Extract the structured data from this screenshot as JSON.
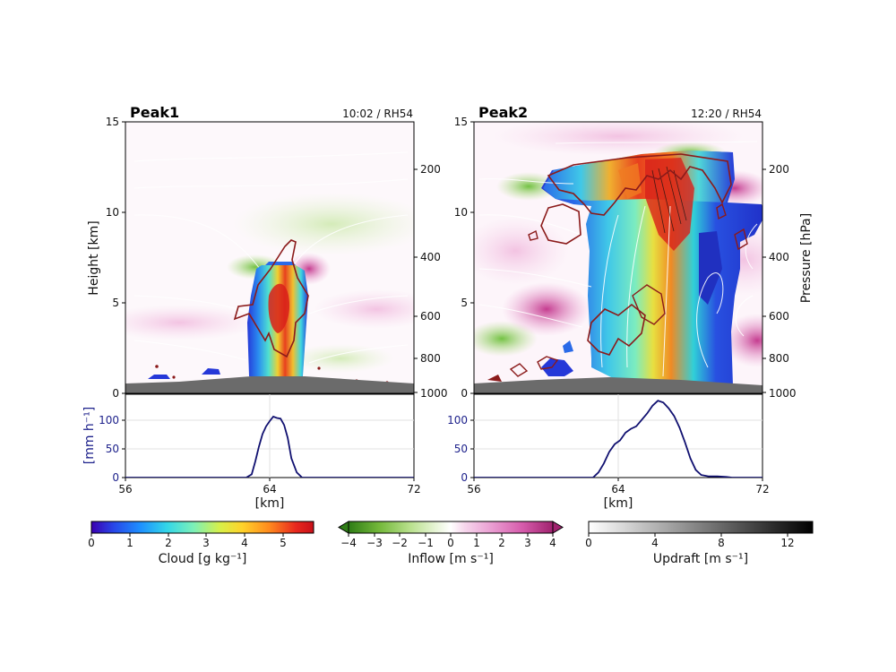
{
  "chart_data": [
    {
      "type": "heatmap",
      "title": "Peak1",
      "subtitle": "10:02 / RH54",
      "ylabel": "Height [km]",
      "ylim": [
        0,
        15
      ],
      "yticks": [
        "0",
        "5",
        "10",
        "15"
      ],
      "y2ticks": [
        "200",
        "400",
        "600",
        "800",
        "1000"
      ],
      "panel_xlim": [
        56,
        72
      ]
    },
    {
      "type": "heatmap",
      "title": "Peak2",
      "subtitle": "12:20 / RH54",
      "ylabel": "",
      "ylabel2": "Pressure [hPa]",
      "ylim": [
        0,
        15
      ],
      "yticks": [
        "0",
        "5",
        "10",
        "15"
      ],
      "y2ticks": [
        "200",
        "400",
        "600",
        "800",
        "1000"
      ],
      "panel_xlim": [
        56,
        72
      ]
    },
    {
      "type": "line",
      "panel": "Peak1",
      "xlabel": "[km]",
      "ylabel": "[mm h⁻¹]",
      "xlim": [
        56,
        72
      ],
      "ylim": [
        0,
        130
      ],
      "xticks": [
        "56",
        "64",
        "72"
      ],
      "yticks": [
        "0",
        "50",
        "100"
      ],
      "series": [
        {
          "x": [
            56,
            62.7,
            63.0,
            63.2,
            63.4,
            63.6,
            63.8,
            64.0,
            64.2,
            64.4,
            64.6,
            64.8,
            65.0,
            65.2,
            65.5,
            65.8,
            72
          ],
          "y": [
            0,
            0,
            5,
            25,
            48,
            68,
            80,
            88,
            95,
            93,
            92,
            82,
            62,
            30,
            8,
            0,
            0
          ]
        }
      ]
    },
    {
      "type": "line",
      "panel": "Peak2",
      "xlabel": "[km]",
      "ylabel": "",
      "xlim": [
        56,
        72
      ],
      "ylim": [
        0,
        130
      ],
      "xticks": [
        "56",
        "64",
        "72"
      ],
      "yticks": [
        "0",
        "50",
        "100"
      ],
      "series": [
        {
          "x": [
            56,
            62.6,
            62.9,
            63.2,
            63.5,
            63.8,
            64.1,
            64.4,
            64.7,
            65.0,
            65.3,
            65.6,
            65.9,
            66.2,
            66.5,
            66.8,
            67.1,
            67.4,
            67.7,
            68.0,
            68.3,
            68.6,
            69.0,
            69.5,
            70.0,
            70.3,
            72
          ],
          "y": [
            0,
            0,
            8,
            22,
            40,
            52,
            58,
            70,
            76,
            80,
            90,
            100,
            112,
            120,
            117,
            108,
            96,
            78,
            55,
            30,
            12,
            4,
            2,
            2,
            1,
            0,
            0
          ]
        }
      ]
    }
  ],
  "colorbars": [
    {
      "label": "Cloud [g kg⁻¹]",
      "ticks": [
        "0",
        "1",
        "2",
        "3",
        "4",
        "5"
      ],
      "range": [
        0,
        5.8
      ],
      "colors": [
        "#3b00b0",
        "#2846e8",
        "#1e90ff",
        "#33d6e8",
        "#7cf0b8",
        "#d8f048",
        "#ffd22a",
        "#ff8a1e",
        "#e8281e",
        "#c8101a"
      ]
    },
    {
      "label": "Inflow [m s⁻¹]",
      "ticks": [
        "−4",
        "−3",
        "−2",
        "−1",
        "0",
        "1",
        "2",
        "3",
        "4"
      ],
      "range": [
        -4,
        4
      ],
      "colors": [
        "#2f7d16",
        "#74b83a",
        "#b8e08c",
        "#e8f5d8",
        "#ffffff",
        "#f6d6ec",
        "#ea9ed2",
        "#d65cac",
        "#a0226e"
      ]
    },
    {
      "label": "Updraft [m s⁻¹]",
      "ticks": [
        "0",
        "4",
        "8",
        "12"
      ],
      "range": [
        0,
        13.5
      ],
      "colors": [
        "#ffffff",
        "#000000"
      ]
    }
  ]
}
